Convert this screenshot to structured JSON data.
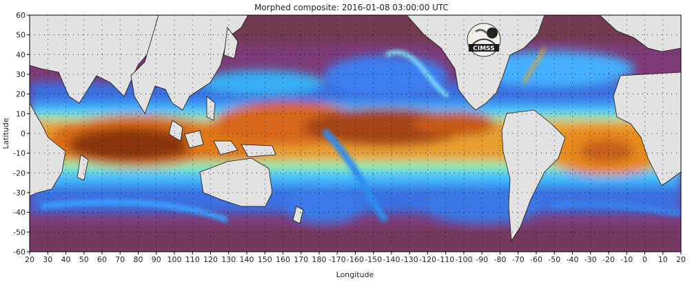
{
  "title": "Morphed composite: 2016-01-08 03:00:00 UTC",
  "x_axis": {
    "label": "Longitude",
    "ticks": [
      "20",
      "30",
      "40",
      "50",
      "60",
      "70",
      "80",
      "90",
      "100",
      "110",
      "120",
      "130",
      "140",
      "150",
      "160",
      "170",
      "180",
      "-170",
      "-160",
      "-150",
      "-140",
      "-130",
      "-120",
      "-110",
      "-100",
      "-90",
      "-80",
      "-70",
      "-60",
      "-50",
      "-40",
      "-30",
      "-20",
      "-10",
      "0",
      "10",
      "20"
    ]
  },
  "y_axis": {
    "label": "Latitude",
    "ticks": [
      "60",
      "50",
      "40",
      "30",
      "20",
      "10",
      "0",
      "-10",
      "-20",
      "-30",
      "-40",
      "-50",
      "-60"
    ],
    "range": [
      -60,
      60
    ]
  },
  "map": {
    "grid": "dotted, every 10 degrees",
    "land_color": "#e2e2e2",
    "outline_color": "#000000",
    "palette": [
      "#6b2a25",
      "#8a3a8f",
      "#3c6ee8",
      "#39b5ff",
      "#7fe8ff",
      "#8cf5a0",
      "#e8d64a",
      "#f08a1c",
      "#c65a12",
      "#7a2b0a"
    ]
  },
  "logo": {
    "name": "CIMSS"
  }
}
